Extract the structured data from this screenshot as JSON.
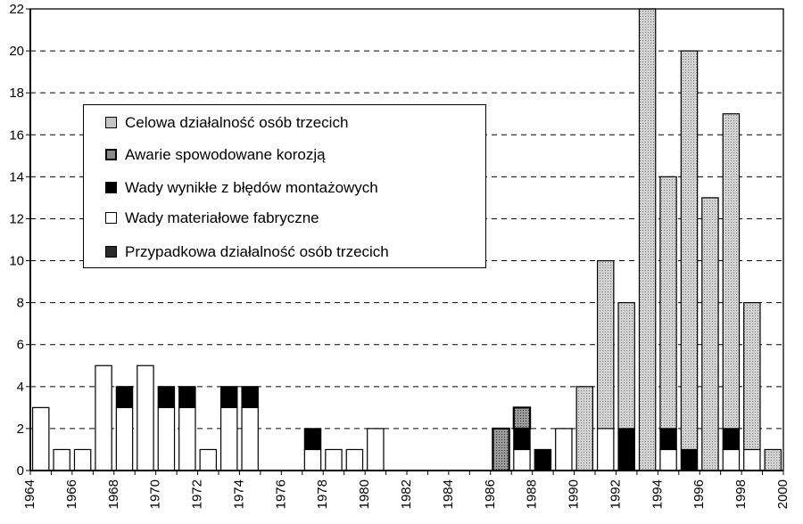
{
  "chart_data": {
    "type": "bar",
    "stacked": true,
    "x": [
      1964,
      1965,
      1966,
      1967,
      1968,
      1969,
      1970,
      1971,
      1972,
      1973,
      1974,
      1975,
      1976,
      1977,
      1978,
      1979,
      1980,
      1981,
      1982,
      1983,
      1984,
      1985,
      1986,
      1987,
      1988,
      1989,
      1990,
      1991,
      1992,
      1993,
      1994,
      1995,
      1996,
      1997,
      1998,
      1999
    ],
    "x_ticks": [
      "1964",
      "1966",
      "1968",
      "1970",
      "1972",
      "1974",
      "1976",
      "1978",
      "1980",
      "1982",
      "1984",
      "1986",
      "1988",
      "1990",
      "1992",
      "1994",
      "1996",
      "1998",
      "2000"
    ],
    "y_ticks": [
      "0",
      "2",
      "4",
      "6",
      "8",
      "10",
      "12",
      "14",
      "16",
      "18",
      "20",
      "22"
    ],
    "ylim": [
      0,
      22
    ],
    "grid": "horizontal dashed",
    "legend_position": "upper-left",
    "series": [
      {
        "name": "Przypadkowa działalność osób trzecich",
        "color": "#2a2a2a",
        "values": [
          0,
          0,
          0,
          0,
          0,
          0,
          0,
          0,
          0,
          0,
          0,
          0,
          0,
          0,
          0,
          0,
          0,
          0,
          0,
          0,
          0,
          0,
          0,
          0,
          0,
          0,
          0,
          0,
          0,
          0,
          0,
          0,
          0,
          0,
          0,
          0
        ]
      },
      {
        "name": "Wady materiałowe fabryczne",
        "color": "#ffffff",
        "values": [
          3,
          1,
          1,
          5,
          3,
          5,
          3,
          3,
          1,
          3,
          3,
          0,
          0,
          1,
          1,
          1,
          2,
          0,
          0,
          0,
          0,
          0,
          0,
          1,
          0,
          2,
          0,
          2,
          0,
          0,
          1,
          0,
          0,
          1,
          1,
          0
        ]
      },
      {
        "name": "Wady wynikłe z błędów montażowych",
        "color": "#000000",
        "values": [
          0,
          0,
          0,
          0,
          1,
          0,
          1,
          1,
          0,
          1,
          1,
          0,
          0,
          1,
          0,
          0,
          0,
          0,
          0,
          0,
          0,
          0,
          0,
          1,
          1,
          0,
          0,
          0,
          2,
          0,
          1,
          1,
          0,
          1,
          0,
          0
        ]
      },
      {
        "name": "Awarie spowodowane korozją",
        "color": "#8a8a8a",
        "values": [
          0,
          0,
          0,
          0,
          0,
          0,
          0,
          0,
          0,
          0,
          0,
          0,
          0,
          0,
          0,
          0,
          0,
          0,
          0,
          0,
          0,
          0,
          2,
          1,
          0,
          0,
          0,
          0,
          0,
          0,
          0,
          0,
          0,
          0,
          0,
          0
        ]
      },
      {
        "name": "Celowa działalność osób trzecich",
        "color": "#c4c4c4",
        "values": [
          0,
          0,
          0,
          0,
          0,
          0,
          0,
          0,
          0,
          0,
          0,
          0,
          0,
          0,
          0,
          0,
          0,
          0,
          0,
          0,
          0,
          0,
          0,
          0,
          0,
          0,
          4,
          8,
          6,
          22,
          12,
          19,
          13,
          15,
          7,
          1
        ]
      }
    ]
  }
}
